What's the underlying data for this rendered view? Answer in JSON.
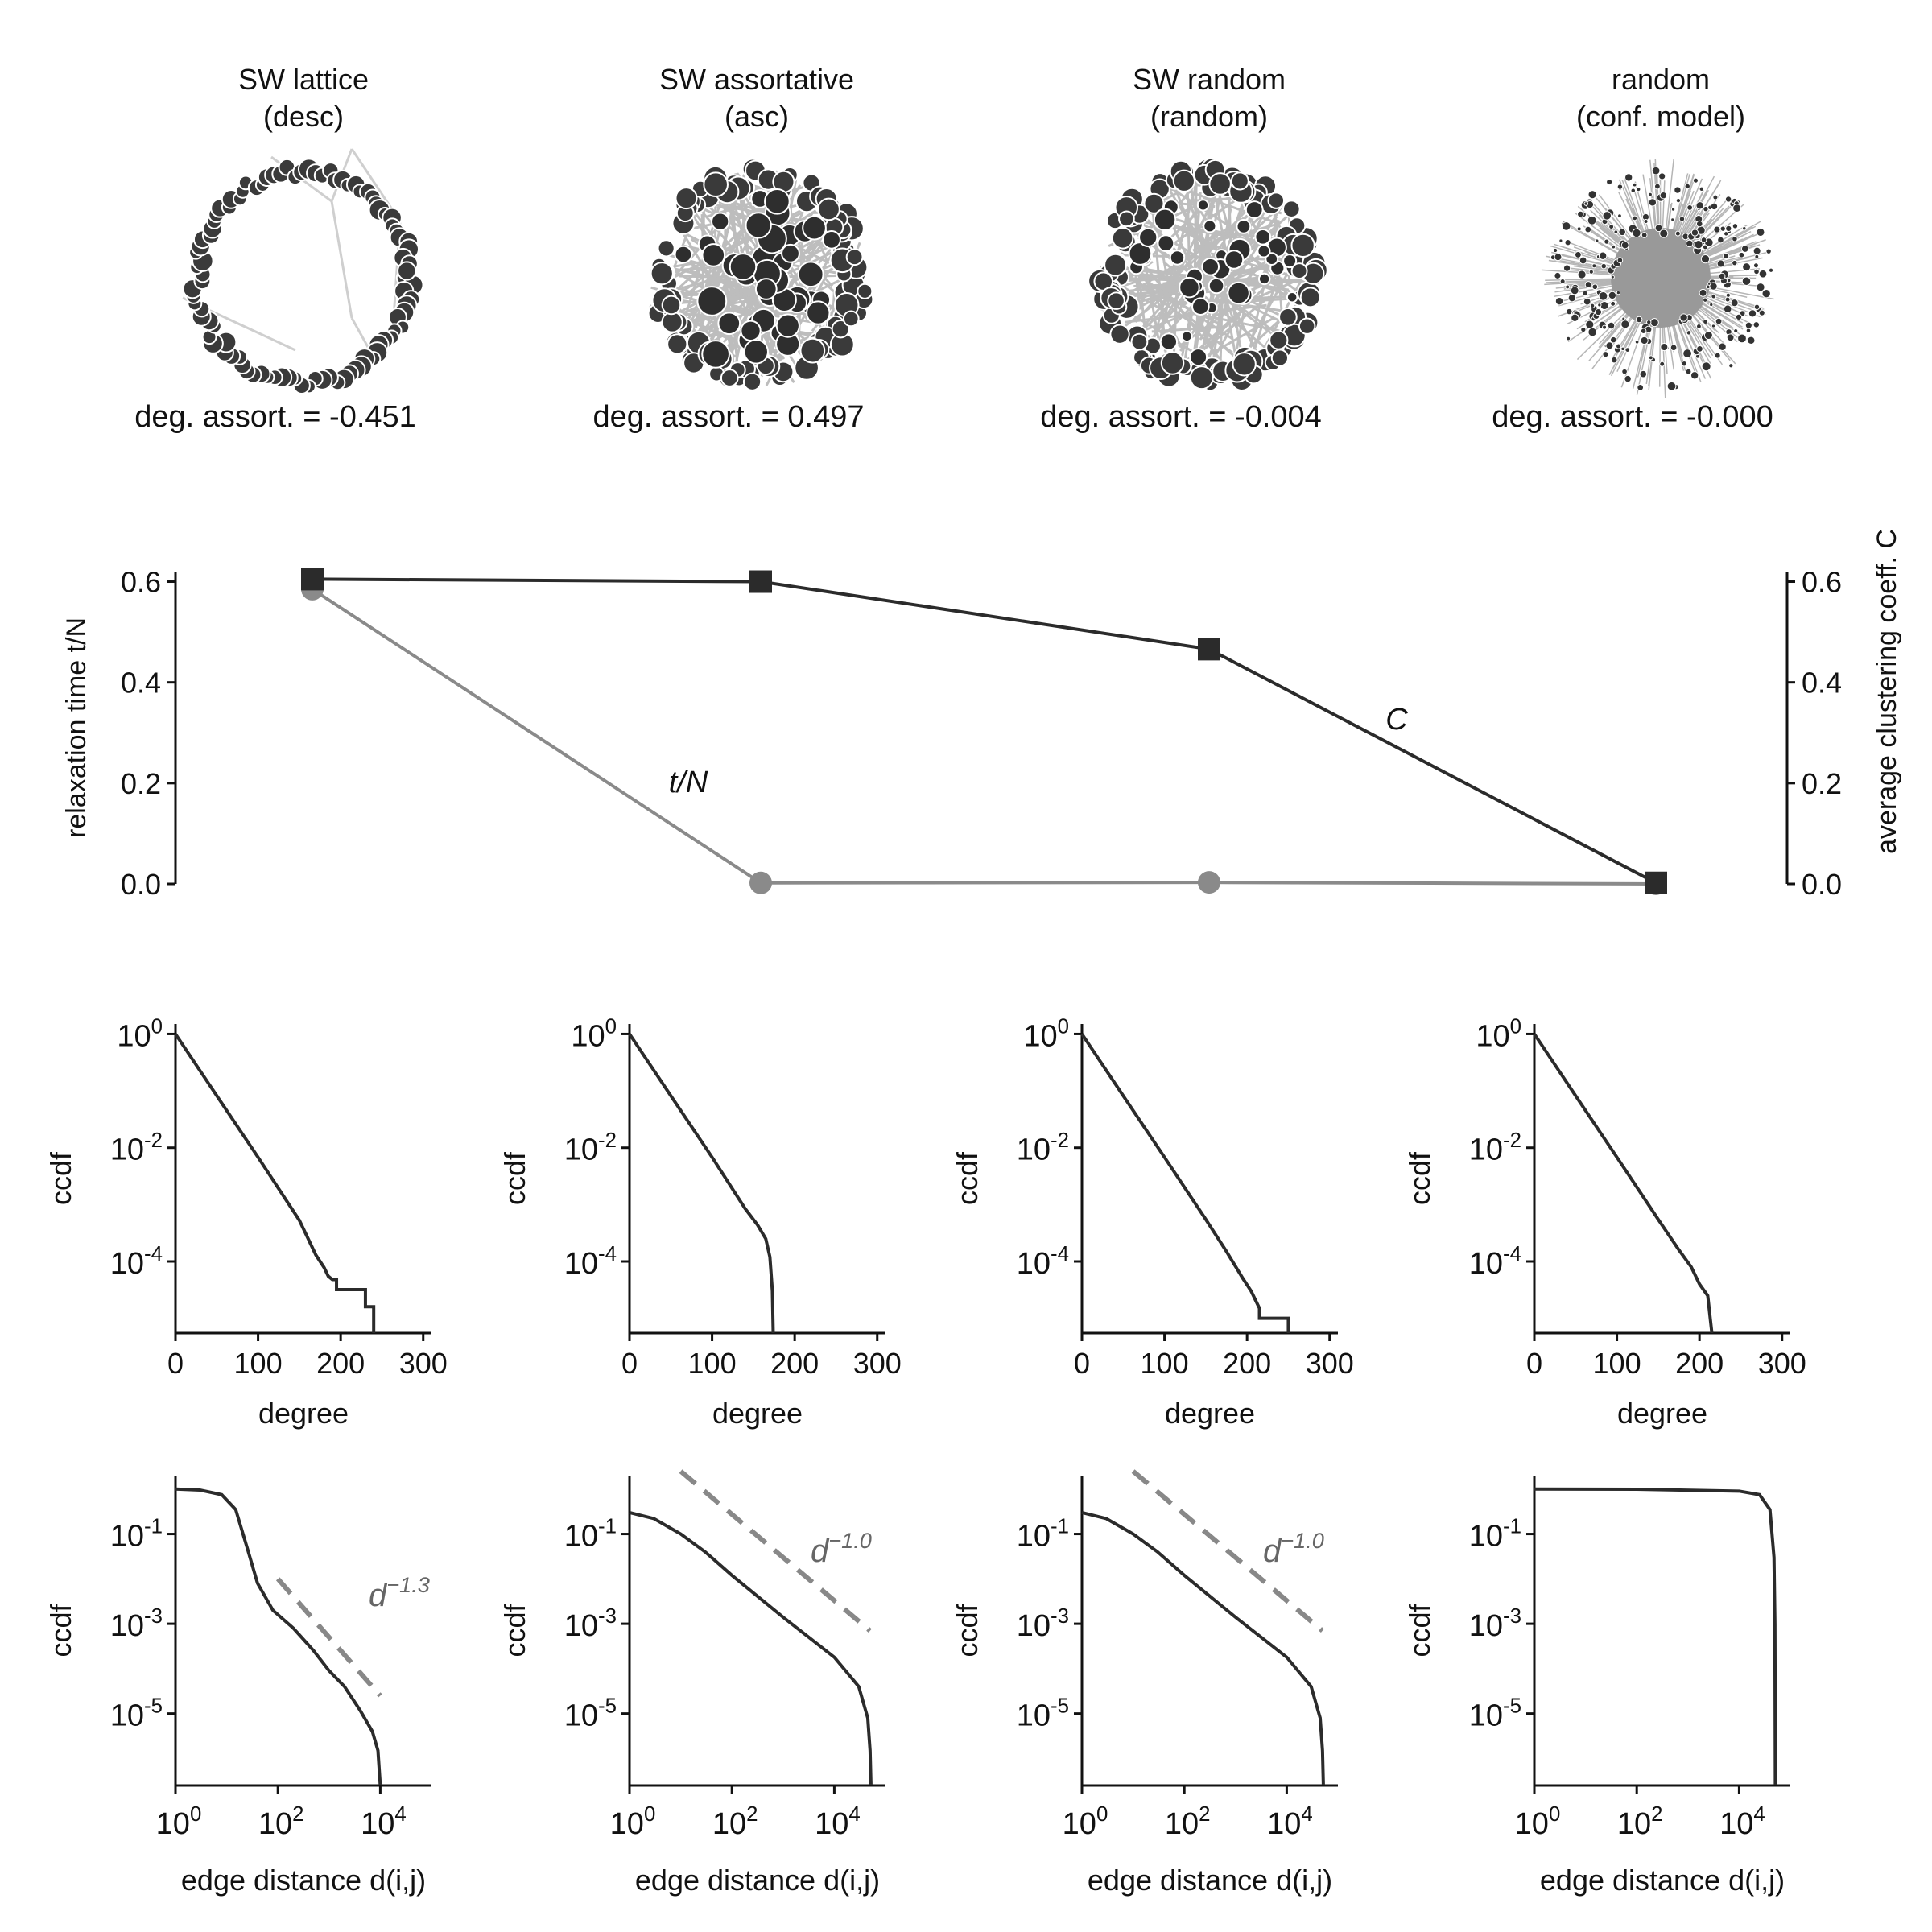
{
  "colors": {
    "dark": "#2b2b2b",
    "gray": "#8a8a8a",
    "dash": "#888888",
    "edge": "#b0b0b0"
  },
  "networks": [
    {
      "title": "SW lattice",
      "subtitle": "(desc)",
      "assort_label": "deg. assort. = -0.451"
    },
    {
      "title": "SW assortative",
      "subtitle": "(asc)",
      "assort_label": "deg. assort. = 0.497"
    },
    {
      "title": "SW random",
      "subtitle": "(random)",
      "assort_label": "deg. assort. = -0.004"
    },
    {
      "title": "random",
      "subtitle": "(conf. model)",
      "assort_label": "deg. assort. = -0.000"
    }
  ],
  "chart_data": [
    {
      "type": "line",
      "panel": "relaxation",
      "ylabel_left": "relaxation time t/N",
      "ylabel_right": "average clustering coeff. C",
      "ylim": [
        0,
        0.62
      ],
      "yticks": [
        "0.0",
        "0.2",
        "0.4",
        "0.6"
      ],
      "categories": [
        "SW lattice",
        "SW assortative",
        "SW random",
        "random"
      ],
      "series": [
        {
          "name": "t/N",
          "marker": "circle",
          "values": [
            0.585,
            0.002,
            0.003,
            0.0
          ]
        },
        {
          "name": "C",
          "marker": "square",
          "values": [
            0.605,
            0.6,
            0.466,
            0.002
          ]
        }
      ]
    },
    {
      "type": "line",
      "panel": "degree-ccdf",
      "xlabel": "degree",
      "ylabel": "ccdf",
      "xlim": [
        0,
        310
      ],
      "xticks": [
        "0",
        "100",
        "200",
        "300"
      ],
      "ylog": true,
      "ylim": [
        5.5e-06,
        1.5
      ],
      "yticks": [
        {
          "base": "10",
          "exp": "0"
        },
        {
          "base": "10",
          "exp": "-2"
        },
        {
          "base": "10",
          "exp": "-4"
        }
      ],
      "series": [
        {
          "values": [
            [
              0,
              1
            ],
            [
              50,
              0.082
            ],
            [
              100,
              0.0068
            ],
            [
              150,
              0.00053
            ],
            [
              170,
              0.00013
            ],
            [
              180,
              7.8e-05
            ],
            [
              185,
              5.5e-05
            ],
            [
              190,
              4.8e-05
            ],
            [
              195,
              4.8e-05
            ],
            [
              195,
              3.2e-05
            ],
            [
              230,
              3.2e-05
            ],
            [
              230,
              1.6e-05
            ],
            [
              240,
              1.6e-05
            ],
            [
              240,
              5.5e-06
            ]
          ]
        },
        {
          "values": [
            [
              0,
              1
            ],
            [
              50,
              0.082
            ],
            [
              100,
              0.0068
            ],
            [
              140,
              0.00085
            ],
            [
              155,
              0.00044
            ],
            [
              165,
              0.00025
            ],
            [
              170,
              0.00012
            ],
            [
              173,
              3e-05
            ],
            [
              174,
              5.5e-06
            ]
          ]
        },
        {
          "values": [
            [
              0,
              1
            ],
            [
              50,
              0.082
            ],
            [
              100,
              0.0068
            ],
            [
              150,
              0.00055
            ],
            [
              175,
              0.00015
            ],
            [
              195,
              5e-05
            ],
            [
              205,
              3e-05
            ],
            [
              215,
              1.5e-05
            ],
            [
              215,
              1e-05
            ],
            [
              250,
              1e-05
            ],
            [
              250,
              5.5e-06
            ]
          ]
        },
        {
          "values": [
            [
              0,
              1
            ],
            [
              50,
              0.082
            ],
            [
              100,
              0.0068
            ],
            [
              150,
              0.00055
            ],
            [
              175,
              0.00016
            ],
            [
              190,
              8e-05
            ],
            [
              200,
              4e-05
            ],
            [
              210,
              2.5e-05
            ],
            [
              213,
              1e-05
            ],
            [
              215,
              5.5e-06
            ]
          ]
        }
      ]
    },
    {
      "type": "line",
      "panel": "edge-distance-ccdf",
      "xlabel": "edge distance d(i,j)",
      "ylabel": "ccdf",
      "xlog": true,
      "xlim": [
        1,
        100000
      ],
      "xticks": [
        {
          "base": "10",
          "exp": "0"
        },
        {
          "base": "10",
          "exp": "2"
        },
        {
          "base": "10",
          "exp": "4"
        }
      ],
      "ylog": true,
      "ylim": [
        2.5e-07,
        2
      ],
      "yticks": [
        {
          "base": "10",
          "exp": "-1"
        },
        {
          "base": "10",
          "exp": "-3"
        },
        {
          "base": "10",
          "exp": "-5"
        }
      ],
      "series": [
        {
          "values": [
            [
              1,
              1
            ],
            [
              3,
              0.95
            ],
            [
              8,
              0.75
            ],
            [
              15,
              0.35
            ],
            [
              25,
              0.05
            ],
            [
              40,
              0.008
            ],
            [
              80,
              0.002
            ],
            [
              200,
              0.0008
            ],
            [
              500,
              0.00025
            ],
            [
              1000,
              9e-05
            ],
            [
              2000,
              4e-05
            ],
            [
              4000,
              1.2e-05
            ],
            [
              7000,
              4e-06
            ],
            [
              9000,
              1.5e-06
            ],
            [
              10000,
              2.5e-07
            ]
          ],
          "fit": {
            "label_base": "d",
            "label_exp": "−1.3",
            "x": [
              100,
              10000
            ],
            "y": [
              0.01,
              2.5e-05
            ]
          }
        },
        {
          "values": [
            [
              1,
              0.3
            ],
            [
              3,
              0.22
            ],
            [
              10,
              0.1
            ],
            [
              30,
              0.04
            ],
            [
              100,
              0.012
            ],
            [
              1000,
              0.0014
            ],
            [
              10000,
              0.00018
            ],
            [
              30000,
              4e-05
            ],
            [
              45000,
              8e-06
            ],
            [
              50000,
              1.5e-06
            ],
            [
              52000,
              2.5e-07
            ]
          ],
          "fit": {
            "label_base": "d",
            "label_exp": "−1.0",
            "x": [
              10,
              50000
            ],
            "y": [
              2.5,
              0.0007
            ]
          }
        },
        {
          "values": [
            [
              1,
              0.3
            ],
            [
              3,
              0.22
            ],
            [
              10,
              0.1
            ],
            [
              30,
              0.04
            ],
            [
              100,
              0.012
            ],
            [
              1000,
              0.0014
            ],
            [
              10000,
              0.00018
            ],
            [
              30000,
              4e-05
            ],
            [
              45000,
              8e-06
            ],
            [
              50000,
              1.5e-06
            ],
            [
              52000,
              2.5e-07
            ]
          ],
          "fit": {
            "label_base": "d",
            "label_exp": "−1.0",
            "x": [
              10,
              50000
            ],
            "y": [
              2.5,
              0.0007
            ]
          }
        },
        {
          "values": [
            [
              1,
              1
            ],
            [
              100,
              0.99
            ],
            [
              10000,
              0.9
            ],
            [
              25000,
              0.75
            ],
            [
              40000,
              0.35
            ],
            [
              48000,
              0.03
            ],
            [
              50000,
              0.001
            ],
            [
              51000,
              2.5e-07
            ]
          ]
        }
      ]
    }
  ]
}
